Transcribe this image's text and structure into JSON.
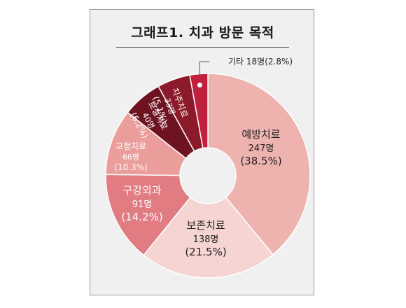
{
  "chart_data": {
    "type": "pie",
    "title": "그래프1. 치과 방문 목적",
    "slices": [
      {
        "label": "예방치료",
        "count": "247명",
        "percent": "(38.5%)",
        "value": 247,
        "share": 38.5,
        "color": "#eeb3ae",
        "text_color": "#222222"
      },
      {
        "label": "보존치료",
        "count": "138명",
        "percent": "(21.5%)",
        "value": 138,
        "share": 21.5,
        "color": "#f5d4d1",
        "text_color": "#222222"
      },
      {
        "label": "구강외과",
        "count": "91명",
        "percent": "(14.2%)",
        "value": 91,
        "share": 14.2,
        "color": "#e07c82",
        "text_color": "#ffffff"
      },
      {
        "label": "교정치료",
        "count": "66명",
        "percent": "(10.3%)",
        "value": 66,
        "share": 10.3,
        "color": "#ea9d9b",
        "text_color": "#ffffff"
      },
      {
        "label": "보철치료",
        "count": "40명",
        "percent": "(6.2%)",
        "value": 40,
        "share": 6.2,
        "color": "#6e1420",
        "text_color": "#ffffff"
      },
      {
        "label": "치주치료",
        "count": "33명",
        "percent": "(5.1%)",
        "value": 33,
        "share": 5.1,
        "color": "#8c1a2a",
        "text_color": "#ffffff"
      },
      {
        "label": "기타",
        "count": "18명",
        "percent": "(2.8%)",
        "value": 18,
        "share": 2.8,
        "color": "#c2203c",
        "text_color": "#222222"
      }
    ]
  }
}
